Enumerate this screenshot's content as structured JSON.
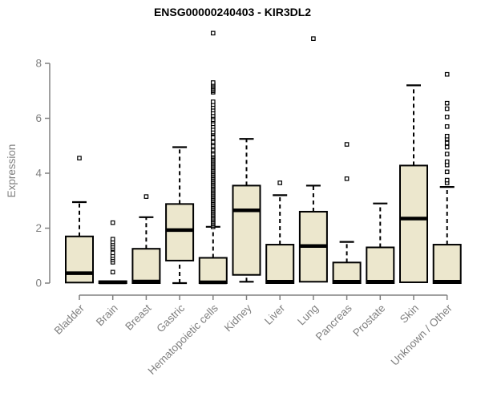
{
  "chart_data": {
    "type": "boxplot",
    "title": "ENSG00000240403 - KIR3DL2",
    "ylabel": "Expression",
    "xlabel": "",
    "yticks": [
      0,
      2,
      4,
      6,
      8
    ],
    "ylim": [
      0,
      9.3
    ],
    "grid": false,
    "legend_position": "none",
    "colors": {
      "box_fill": "#ece7cd",
      "box_stroke": "#000000",
      "axis": "#808080",
      "title": "#000000",
      "background": "#ffffff"
    },
    "categories": [
      "Bladder",
      "Brain",
      "Breast",
      "Gastric",
      "Hematopoietic cells",
      "Kidney",
      "Liver",
      "Lung",
      "Pancreas",
      "Prostate",
      "Skin",
      "Unknown / Other"
    ],
    "series": [
      {
        "label": "Bladder",
        "low": 0,
        "q1": 0.02,
        "median": 0.36,
        "q3": 1.7,
        "high": 2.95,
        "outliers": [
          4.55
        ]
      },
      {
        "label": "Brain",
        "low": 0,
        "q1": 0,
        "median": 0.03,
        "q3": 0.07,
        "high": 0.07,
        "outliers": [
          0.4,
          0.76,
          0.84,
          0.92,
          1.0,
          1.1,
          1.26,
          1.34,
          1.42,
          1.5,
          1.6,
          2.2
        ]
      },
      {
        "label": "Breast",
        "low": 0,
        "q1": 0,
        "median": 0.06,
        "q3": 1.25,
        "high": 2.4,
        "outliers": [
          3.15
        ]
      },
      {
        "label": "Gastric",
        "low": 0,
        "q1": 0.82,
        "median": 1.93,
        "q3": 2.88,
        "high": 4.95,
        "outliers": []
      },
      {
        "label": "Hematopoietic cells",
        "low": 0,
        "q1": 0,
        "median": 0.03,
        "q3": 0.92,
        "high": 2.05,
        "outliers": [
          2.05,
          2.1,
          2.15,
          2.2,
          2.25,
          2.3,
          2.35,
          2.4,
          2.45,
          2.5,
          2.55,
          2.6,
          2.65,
          2.7,
          2.75,
          2.8,
          2.85,
          2.9,
          2.95,
          3.0,
          3.05,
          3.1,
          3.15,
          3.2,
          3.25,
          3.3,
          3.35,
          3.4,
          3.45,
          3.5,
          3.55,
          3.6,
          3.65,
          3.7,
          3.75,
          3.8,
          3.85,
          3.9,
          3.95,
          4.0,
          4.05,
          4.1,
          4.15,
          4.2,
          4.25,
          4.3,
          4.35,
          4.4,
          4.45,
          4.5,
          4.55,
          4.6,
          4.65,
          4.7,
          4.8,
          4.85,
          4.95,
          5.0,
          5.1,
          5.15,
          5.25,
          5.3,
          5.45,
          5.5,
          5.6,
          5.7,
          5.8,
          5.9,
          5.95,
          6.05,
          6.1,
          6.2,
          6.3,
          6.4,
          6.5,
          6.6,
          6.95,
          7.0,
          7.05,
          7.1,
          7.15,
          7.2,
          7.25,
          7.3,
          9.1
        ]
      },
      {
        "label": "Kidney",
        "low": 0.05,
        "q1": 0.3,
        "median": 2.65,
        "q3": 3.55,
        "high": 5.25,
        "outliers": []
      },
      {
        "label": "Liver",
        "low": 0,
        "q1": 0,
        "median": 0.05,
        "q3": 1.4,
        "high": 3.2,
        "outliers": [
          3.65
        ]
      },
      {
        "label": "Lung",
        "low": 0.02,
        "q1": 0.05,
        "median": 1.35,
        "q3": 2.6,
        "high": 3.55,
        "outliers": [
          8.9
        ]
      },
      {
        "label": "Pancreas",
        "low": 0,
        "q1": 0,
        "median": 0.05,
        "q3": 0.75,
        "high": 1.5,
        "outliers": [
          3.8,
          5.05
        ]
      },
      {
        "label": "Prostate",
        "low": 0,
        "q1": 0,
        "median": 0.05,
        "q3": 1.3,
        "high": 2.9,
        "outliers": []
      },
      {
        "label": "Skin",
        "low": 0.02,
        "q1": 0.03,
        "median": 2.35,
        "q3": 4.28,
        "high": 7.2,
        "outliers": []
      },
      {
        "label": "Unknown / Other",
        "low": 0,
        "q1": 0,
        "median": 0.05,
        "q3": 1.4,
        "high": 3.5,
        "outliers": [
          3.65,
          3.75,
          4.05,
          4.3,
          4.42,
          4.7,
          4.95,
          5.1,
          5.25,
          5.35,
          5.7,
          6.05,
          6.35,
          6.55,
          7.6
        ]
      }
    ]
  }
}
